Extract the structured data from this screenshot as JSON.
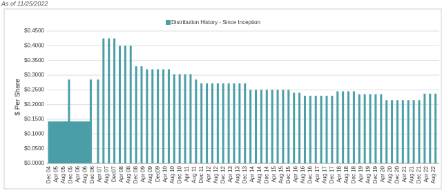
{
  "header": "As of 11/25/2022",
  "chart_data": {
    "type": "bar",
    "legend_label": "Distribution History - Since Inception",
    "y_label": "$ Per Share",
    "color": "#4a9ea7",
    "grid": true,
    "x": [
      "Dec 04",
      "Jan 05",
      "Feb 05",
      "Mar 05",
      "Apr 05",
      "May 05",
      "Jun 05",
      "Jul 05",
      "Aug 05",
      "Sep 05",
      "Oct 05",
      "Nov 05",
      "Dec 05",
      "Jan 06",
      "Feb 06",
      "Mar 06",
      "Apr 06",
      "May 06",
      "Jun 06",
      "Jul 06",
      "Aug 06",
      "Sep 06",
      "Oct 06",
      "Nov 06",
      "Mar 07",
      "Jun 07",
      "Sep 07",
      "Dec 07",
      "Mar 08",
      "Jun 08",
      "Sep 08",
      "Dec 08",
      "Mar 09",
      "Jun 09",
      "Sep 09",
      "Dec 09",
      "Mar 10",
      "Jun 10",
      "Sep 10",
      "Dec 10",
      "Mar 11",
      "Jun 11",
      "Sep 11",
      "Dec 11",
      "Mar 12",
      "Jun 12",
      "Sep 12",
      "Dec 12",
      "Mar 13",
      "Jun 13",
      "Sep 13",
      "Dec 13",
      "Mar 14",
      "Jun 14",
      "Sep 14",
      "Dec 14",
      "Mar 15",
      "Jun 15",
      "Sep 15",
      "Dec 15",
      "Mar 16",
      "Jun 16",
      "Sep 16",
      "Dec 16",
      "Mar 17",
      "Jun 17",
      "Sep 17",
      "Dec 17",
      "Mar 18",
      "Jun 18",
      "Sep 18",
      "Dec 18",
      "Mar 19",
      "Jun 19",
      "Sep 19",
      "Dec 19",
      "Mar 20",
      "Jun 20",
      "Sep 20",
      "Dec 20",
      "Mar 21",
      "Jun 21",
      "Sep 21",
      "Dec 21",
      "Mar 22",
      "Jun 22",
      "Sep 22"
    ],
    "values": [
      0.1425,
      0.1425,
      0.1425,
      0.1425,
      0.1425,
      0.1425,
      0.1425,
      0.1425,
      0.1425,
      0.1425,
      0.1425,
      0.285,
      0.1425,
      0.1425,
      0.1425,
      0.1425,
      0.1425,
      0.1425,
      0.1425,
      0.1425,
      0.1425,
      0.1425,
      0.1425,
      0.285,
      0.285,
      0.425,
      0.425,
      0.425,
      0.4,
      0.4,
      0.4,
      0.33,
      0.33,
      0.32,
      0.32,
      0.32,
      0.32,
      0.32,
      0.303,
      0.303,
      0.303,
      0.303,
      0.285,
      0.272,
      0.272,
      0.272,
      0.272,
      0.272,
      0.272,
      0.272,
      0.272,
      0.272,
      0.25,
      0.25,
      0.25,
      0.25,
      0.25,
      0.25,
      0.25,
      0.25,
      0.24,
      0.24,
      0.23,
      0.23,
      0.23,
      0.23,
      0.23,
      0.23,
      0.245,
      0.245,
      0.245,
      0.245,
      0.235,
      0.235,
      0.235,
      0.235,
      0.235,
      0.215,
      0.215,
      0.215,
      0.215,
      0.215,
      0.215,
      0.215,
      0.237,
      0.237,
      0.237
    ],
    "xticks": [
      "Dec 04",
      "Apr 05",
      "Aug 05",
      "Dec 05",
      "Apr 06",
      "Aug 06",
      "Dec 06",
      "Apr 07",
      "Aug 07",
      "Dec07",
      "Apr 08",
      "Aug 08",
      "Dec 08",
      "Apr 09",
      "Aug 09",
      "Dec09",
      "Apr 10",
      "Aug 10",
      "Dec 10",
      "Apr 11",
      "Aug 11",
      "Dec 11",
      "Apr 12",
      "Aug 12",
      "Dec 12",
      "Apr 13",
      "Aug 13",
      "Dec 13",
      "Apr 14",
      "Aug 14",
      "Dec 14",
      "Apr 15",
      "Aug 15",
      "Dec 15",
      "Apr 16",
      "Aug 16",
      "Dec 16",
      "Apr 17",
      "Aug 17",
      "Dec 17",
      "Apr 18",
      "Aug 18",
      "Dec 18",
      "Apr 19",
      "Aug 19",
      "Dec 19",
      "Apr 20",
      "Aug 20",
      "Dec 20",
      "Apr 21",
      "Aug 21",
      "Dec 21",
      "Apr 22",
      "Aug 22"
    ],
    "ylim": [
      0,
      0.45
    ],
    "yticks": [
      {
        "value": 0,
        "label": "$0.0000"
      },
      {
        "value": 0.05,
        "label": "$0.0500"
      },
      {
        "value": 0.1,
        "label": "$0.1000"
      },
      {
        "value": 0.15,
        "label": "$0.1500"
      },
      {
        "value": 0.2,
        "label": "$0.2000"
      },
      {
        "value": 0.25,
        "label": "$0.2500"
      },
      {
        "value": 0.3,
        "label": "$0.3000"
      },
      {
        "value": 0.35,
        "label": "$0.3500"
      },
      {
        "value": 0.4,
        "label": "$0.4000"
      },
      {
        "value": 0.45,
        "label": "$0.4500"
      }
    ]
  }
}
